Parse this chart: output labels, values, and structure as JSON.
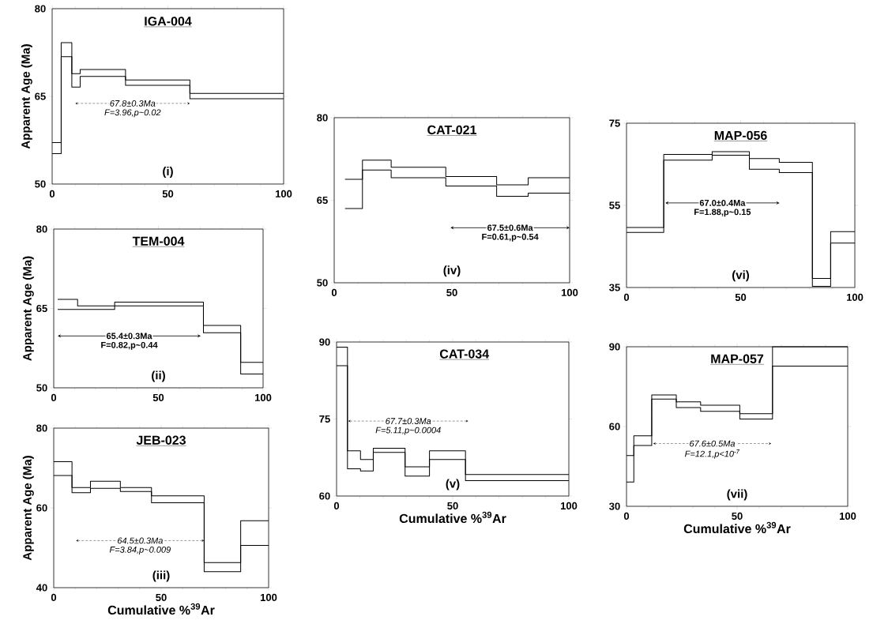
{
  "chart_data": [
    {
      "type": "step",
      "title": "IGA-004",
      "ylabel": "Apparent Age (Ma)",
      "x": [
        0,
        3.9,
        8.5,
        12.1,
        31.7,
        59.5,
        100
      ],
      "series": [
        {
          "color": "#000000",
          "values": [
            57.1,
            74.2,
            68.9,
            69.6,
            67.8,
            65.5,
            65.5
          ]
        },
        {
          "color": "#000000",
          "values": [
            55.2,
            71.8,
            66.6,
            68.4,
            66.9,
            64.6,
            64.6
          ]
        }
      ],
      "xlim": [
        0,
        100
      ],
      "ylim": [
        50,
        80
      ],
      "xticks": [
        0,
        50,
        100
      ],
      "yticks": [
        50,
        65,
        80
      ],
      "annotations": [
        "67.8±0.3Ma",
        "F=3.96,p~0.02",
        "(i)"
      ]
    },
    {
      "type": "step",
      "title": "TEM-004",
      "ylabel": "Apparent Age (Ma)",
      "x": [
        1.9,
        11.4,
        29.1,
        71.5,
        89.3,
        100
      ],
      "series": [
        {
          "color": "#000000",
          "values": [
            66.7,
            65.5,
            66.2,
            61.8,
            54.8,
            54.8
          ]
        },
        {
          "color": "#000000",
          "values": [
            64.8,
            64.8,
            65.5,
            60.4,
            52.6,
            52.6
          ]
        }
      ],
      "xlim": [
        0,
        100
      ],
      "ylim": [
        50,
        80
      ],
      "xticks": [
        0,
        50,
        100
      ],
      "yticks": [
        50,
        65,
        80
      ],
      "annotations": [
        "65.4±0.3Ma",
        "F=0.82,p~0.44",
        "(ii)"
      ]
    },
    {
      "type": "step",
      "title": "JEB-023",
      "ylabel": "Apparent Age (Ma)",
      "xlabel": "Cumulative %$^{39}$Ar",
      "x": [
        0,
        8.5,
        17.1,
        31,
        45.5,
        70,
        87,
        100
      ],
      "series": [
        {
          "color": "#000000",
          "values": [
            71.6,
            65.1,
            66.7,
            65.1,
            63.0,
            46.3,
            56.8,
            56.8
          ]
        },
        {
          "color": "#000000",
          "values": [
            68.1,
            63.8,
            64.9,
            64.1,
            61.3,
            44.0,
            50.6,
            50.6
          ]
        }
      ],
      "xlim": [
        0,
        100
      ],
      "ylim": [
        40,
        80
      ],
      "xticks": [
        0,
        50,
        100
      ],
      "yticks": [
        40,
        60,
        80
      ],
      "annotations": [
        "64.5±0.3Ma",
        "F=3.84,p~0.009",
        "(iii)"
      ]
    },
    {
      "type": "step",
      "title": "CAT-021",
      "x": [
        4.6,
        12,
        24.2,
        47.4,
        69,
        82.4,
        100
      ],
      "series": [
        {
          "color": "#000000",
          "values": [
            68.8,
            72.3,
            71.0,
            69.3,
            67.8,
            69.1,
            69.1
          ]
        },
        {
          "color": "#000000",
          "values": [
            63.5,
            70.5,
            69.1,
            67.6,
            65.7,
            66.3,
            66.3
          ]
        }
      ],
      "xlim": [
        0,
        100
      ],
      "ylim": [
        50,
        80
      ],
      "xticks": [
        0,
        50,
        100
      ],
      "yticks": [
        50,
        65,
        80
      ],
      "annotations": [
        "67.5±0.6Ma",
        "F=0.61,p~0.54",
        "(iv)"
      ]
    },
    {
      "type": "step",
      "title": "CAT-034",
      "xlabel": "Cumulative %$^{39}$Ar",
      "x": [
        0,
        4.7,
        10.3,
        15.8,
        29.5,
        40,
        55.5,
        100
      ],
      "series": [
        {
          "color": "#000000",
          "values": [
            89.0,
            68.8,
            67.1,
            69.3,
            65.7,
            68.8,
            64.2,
            64.2
          ]
        },
        {
          "color": "#000000",
          "values": [
            85.4,
            65.3,
            64.9,
            68.5,
            63.9,
            67.1,
            63.0,
            63.0
          ]
        }
      ],
      "xlim": [
        0,
        100
      ],
      "ylim": [
        60,
        90
      ],
      "xticks": [
        0,
        50,
        100
      ],
      "yticks": [
        60,
        75,
        90
      ],
      "annotations": [
        "67.7±0.3Ma",
        "F=5.11,p~0.0004",
        "(v)"
      ]
    },
    {
      "type": "step",
      "title": "MAP-056",
      "x": [
        0,
        16.3,
        37.5,
        53.8,
        66.9,
        81.4,
        89.4,
        100
      ],
      "series": [
        {
          "color": "#000000",
          "values": [
            49.6,
            67.4,
            68.1,
            66.4,
            65.5,
            37.2,
            48.6,
            48.6
          ]
        },
        {
          "color": "#000000",
          "values": [
            48.4,
            66.0,
            67.2,
            63.8,
            63.0,
            35.3,
            45.8,
            45.8
          ]
        }
      ],
      "xlim": [
        0,
        100
      ],
      "ylim": [
        35,
        75
      ],
      "xticks": [
        0,
        50,
        100
      ],
      "yticks": [
        35,
        55,
        75
      ],
      "annotations": [
        "67.0±0.4Ma",
        "F=1.88,p~0.15",
        "(vi)"
      ]
    },
    {
      "type": "step",
      "title": "MAP-057",
      "xlabel": "Cumulative %$^{39}$Ar",
      "x": [
        0,
        3.3,
        11.4,
        22.5,
        33.5,
        51.2,
        66,
        100
      ],
      "series": [
        {
          "color": "#000000",
          "values": [
            49.1,
            56.5,
            71.9,
            69.3,
            68.0,
            64.8,
            90.0,
            90.0
          ]
        },
        {
          "color": "#000000",
          "values": [
            39.1,
            52.9,
            70.3,
            67.1,
            65.7,
            62.8,
            82.7,
            82.7
          ]
        }
      ],
      "xlim": [
        0,
        100
      ],
      "ylim": [
        30,
        90
      ],
      "xticks": [
        0,
        50,
        100
      ],
      "yticks": [
        30,
        60,
        90
      ],
      "annotations": [
        "67.6±0.5Ma",
        "F=12.1,p<10$^{-7}$",
        "(vii)"
      ]
    }
  ]
}
